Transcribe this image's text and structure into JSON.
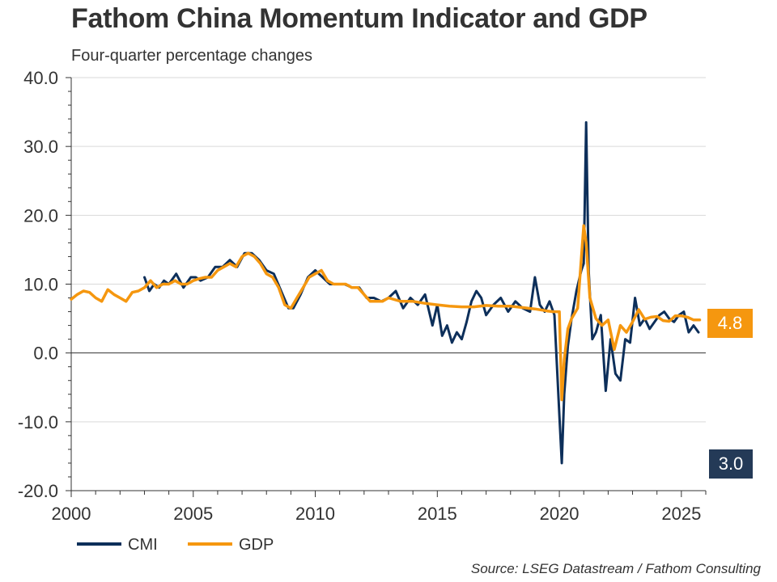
{
  "title": "Fathom China Momentum Indicator and GDP",
  "subtitle": "Four-quarter percentage changes",
  "source": "Source: LSEG Datastream / Fathom Consulting",
  "colors": {
    "cmi": "#0d2f5a",
    "gdp": "#f5970f",
    "badge_cmi": "#243a57",
    "badge_gdp": "#f5970f",
    "grid": "#d9d9d9",
    "axis": "#333333"
  },
  "badges": {
    "gdp": "4.8",
    "cmi": "3.0"
  },
  "chart_data": {
    "type": "line",
    "title": "Fathom China Momentum Indicator and GDP",
    "subtitle": "Four-quarter percentage changes",
    "xlabel": "",
    "ylabel": "",
    "xlim": [
      2000,
      2026
    ],
    "ylim": [
      -20,
      40
    ],
    "yticks": [
      40,
      30,
      20,
      10,
      0,
      -10,
      -20
    ],
    "ytick_labels": [
      "40.0",
      "30.0",
      "20.0",
      "10.0",
      "0.0",
      "-10.0",
      "-20.0"
    ],
    "xticks": [
      2000,
      2005,
      2010,
      2015,
      2020,
      2025
    ],
    "xtick_labels": [
      "2000",
      "2005",
      "2010",
      "2015",
      "2020",
      "2025"
    ],
    "grid": true,
    "legend": {
      "position": "bottom-left",
      "entries": [
        "CMI",
        "GDP"
      ]
    },
    "series": [
      {
        "name": "CMI",
        "x": [
          2003.0,
          2003.2,
          2003.4,
          2003.6,
          2003.8,
          2004.0,
          2004.3,
          2004.6,
          2004.9,
          2005.1,
          2005.3,
          2005.6,
          2005.9,
          2006.2,
          2006.5,
          2006.8,
          2007.1,
          2007.4,
          2007.7,
          2008.0,
          2008.3,
          2008.6,
          2008.9,
          2009.1,
          2009.4,
          2009.7,
          2010.0,
          2010.3,
          2010.6,
          2010.9,
          2011.2,
          2011.5,
          2011.8,
          2012.1,
          2012.4,
          2012.7,
          2013.0,
          2013.3,
          2013.6,
          2013.9,
          2014.2,
          2014.5,
          2014.8,
          2015.0,
          2015.2,
          2015.4,
          2015.6,
          2015.8,
          2016.0,
          2016.2,
          2016.4,
          2016.6,
          2016.8,
          2017.0,
          2017.3,
          2017.6,
          2017.9,
          2018.2,
          2018.5,
          2018.8,
          2019.0,
          2019.2,
          2019.4,
          2019.6,
          2019.8,
          2020.0,
          2020.1,
          2020.2,
          2020.35,
          2020.5,
          2020.7,
          2020.9,
          2021.0,
          2021.1,
          2021.2,
          2021.35,
          2021.5,
          2021.7,
          2021.9,
          2022.1,
          2022.3,
          2022.5,
          2022.7,
          2022.9,
          2023.1,
          2023.3,
          2023.5,
          2023.7,
          2023.9,
          2024.1,
          2024.3,
          2024.5,
          2024.7,
          2024.9,
          2025.1,
          2025.3,
          2025.5,
          2025.7
        ],
        "values": [
          11,
          9,
          10,
          9.5,
          10.5,
          10,
          11.5,
          9.5,
          11,
          11,
          10.5,
          11,
          12.5,
          12.5,
          13.5,
          12.5,
          14.5,
          14.5,
          13.5,
          12,
          11.5,
          9,
          6.5,
          6.5,
          8.5,
          11,
          12,
          11,
          10,
          10,
          10,
          9.5,
          9.5,
          8,
          8,
          7.5,
          8,
          9,
          6.5,
          8,
          7,
          8.5,
          4,
          7,
          2.5,
          4,
          1.5,
          3,
          2,
          4.5,
          7.5,
          9,
          8,
          5.5,
          7,
          8,
          6,
          7.5,
          6.5,
          6,
          11,
          7,
          6,
          7.5,
          5.5,
          -9,
          -16,
          -6,
          1,
          5,
          9,
          12,
          13,
          33.5,
          12,
          2,
          3,
          5.5,
          -5.5,
          2,
          -3,
          -4,
          2,
          1.5,
          8,
          4,
          5,
          3.5,
          4.5,
          5.5,
          6,
          5,
          4.5,
          5.5,
          6,
          3,
          4,
          3
        ]
      },
      {
        "name": "GDP",
        "x": [
          2000.0,
          2000.25,
          2000.5,
          2000.75,
          2001.0,
          2001.25,
          2001.5,
          2001.75,
          2002.0,
          2002.25,
          2002.5,
          2002.75,
          2003.0,
          2003.25,
          2003.5,
          2003.75,
          2004.0,
          2004.25,
          2004.5,
          2004.75,
          2005.0,
          2005.25,
          2005.5,
          2005.75,
          2006.0,
          2006.25,
          2006.5,
          2006.75,
          2007.0,
          2007.25,
          2007.5,
          2007.75,
          2008.0,
          2008.25,
          2008.5,
          2008.75,
          2009.0,
          2009.25,
          2009.5,
          2009.75,
          2010.0,
          2010.25,
          2010.5,
          2010.75,
          2011.0,
          2011.25,
          2011.5,
          2011.75,
          2012.0,
          2012.25,
          2012.5,
          2012.75,
          2013.0,
          2013.5,
          2014.0,
          2014.5,
          2015.0,
          2015.5,
          2016.0,
          2016.5,
          2017.0,
          2017.5,
          2018.0,
          2018.5,
          2019.0,
          2019.5,
          2019.75,
          2020.0,
          2020.1,
          2020.2,
          2020.35,
          2020.5,
          2020.75,
          2021.0,
          2021.1,
          2021.25,
          2021.5,
          2021.75,
          2022.0,
          2022.25,
          2022.5,
          2022.75,
          2023.0,
          2023.25,
          2023.5,
          2023.75,
          2024.0,
          2024.25,
          2024.5,
          2024.75,
          2025.0,
          2025.25,
          2025.5,
          2025.75
        ],
        "values": [
          7.8,
          8.5,
          9,
          8.8,
          8,
          7.5,
          9.2,
          8.5,
          8,
          7.5,
          8.8,
          9,
          9.5,
          10.5,
          9.5,
          10,
          10,
          10.5,
          10,
          10,
          10.5,
          10.8,
          11,
          11,
          12,
          12.5,
          13,
          12.5,
          14,
          14.5,
          14,
          13,
          11.5,
          11,
          9.5,
          7,
          6.5,
          8,
          9.5,
          11,
          11.5,
          12,
          10.5,
          10,
          10,
          10,
          9.5,
          9.5,
          8.5,
          7.5,
          7.5,
          7.5,
          8,
          7.5,
          7.5,
          7.2,
          7,
          6.8,
          6.7,
          6.7,
          6.9,
          6.8,
          6.8,
          6.6,
          6.4,
          6.1,
          6,
          6,
          -6.8,
          -1,
          3.5,
          5,
          6.5,
          18.5,
          16,
          8,
          5,
          4,
          4.8,
          0.5,
          4,
          3,
          4.5,
          6.3,
          4.9,
          5.2,
          5.3,
          4.7,
          4.6,
          5.4,
          5.4,
          5.2,
          4.8,
          4.8
        ]
      }
    ]
  }
}
